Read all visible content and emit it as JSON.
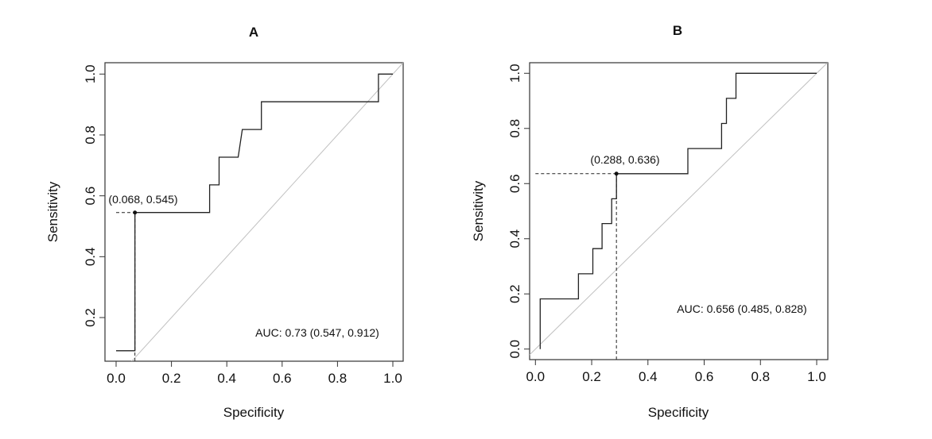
{
  "chart_data": [
    {
      "type": "line",
      "title": "A",
      "xlabel": "Specificity",
      "ylabel": "Sensitivity",
      "xlim": [
        0,
        1
      ],
      "ylim": [
        0.06,
        1.04
      ],
      "xticks": [
        "0.0",
        "0.2",
        "0.4",
        "0.6",
        "0.8",
        "1.0"
      ],
      "yticks": [
        "0.2",
        "0.4",
        "0.6",
        "0.8",
        "1.0"
      ],
      "grid": false,
      "series": [
        {
          "x": [
            0,
            0.068,
            0.068,
            0.338,
            0.338,
            0.372,
            0.372,
            0.441,
            0.456,
            0.525,
            0.525,
            0.948,
            0.948,
            1.0
          ],
          "y": [
            0.091,
            0.091,
            0.545,
            0.545,
            0.636,
            0.636,
            0.727,
            0.727,
            0.818,
            0.818,
            0.909,
            0.909,
            1.0,
            1.0
          ]
        }
      ],
      "reference_line": "diagonal",
      "threshold_point": {
        "x": 0.068,
        "y": 0.545,
        "label": "(0.068, 0.545)"
      },
      "annotation": "AUC: 0.73 (0.547, 0.912)",
      "colors": {
        "curve": "#222222",
        "diagonal": "#c0c0c0"
      }
    },
    {
      "type": "line",
      "title": "B",
      "xlabel": "Specificity",
      "ylabel": "Sensitivity",
      "xlim": [
        0,
        1
      ],
      "ylim": [
        -0.04,
        1.04
      ],
      "xticks": [
        "0.0",
        "0.2",
        "0.4",
        "0.6",
        "0.8",
        "1.0"
      ],
      "yticks": [
        "0.0",
        "0.2",
        "0.4",
        "0.6",
        "0.8",
        "1.0"
      ],
      "grid": false,
      "series": [
        {
          "x": [
            0.017,
            0.017,
            0.153,
            0.153,
            0.204,
            0.204,
            0.237,
            0.237,
            0.271,
            0.271,
            0.288,
            0.288,
            0.542,
            0.542,
            0.662,
            0.662,
            0.679,
            0.679,
            0.713,
            0.713,
            1.0
          ],
          "y": [
            0,
            0.182,
            0.182,
            0.273,
            0.273,
            0.364,
            0.364,
            0.455,
            0.455,
            0.545,
            0.545,
            0.636,
            0.636,
            0.727,
            0.727,
            0.818,
            0.818,
            0.909,
            0.909,
            1.0,
            1.0
          ]
        }
      ],
      "reference_line": "diagonal",
      "threshold_point": {
        "x": 0.288,
        "y": 0.636,
        "label": "(0.288, 0.636)"
      },
      "annotation": "AUC: 0.656 (0.485, 0.828)",
      "colors": {
        "curve": "#222222",
        "diagonal": "#c0c0c0"
      }
    }
  ]
}
